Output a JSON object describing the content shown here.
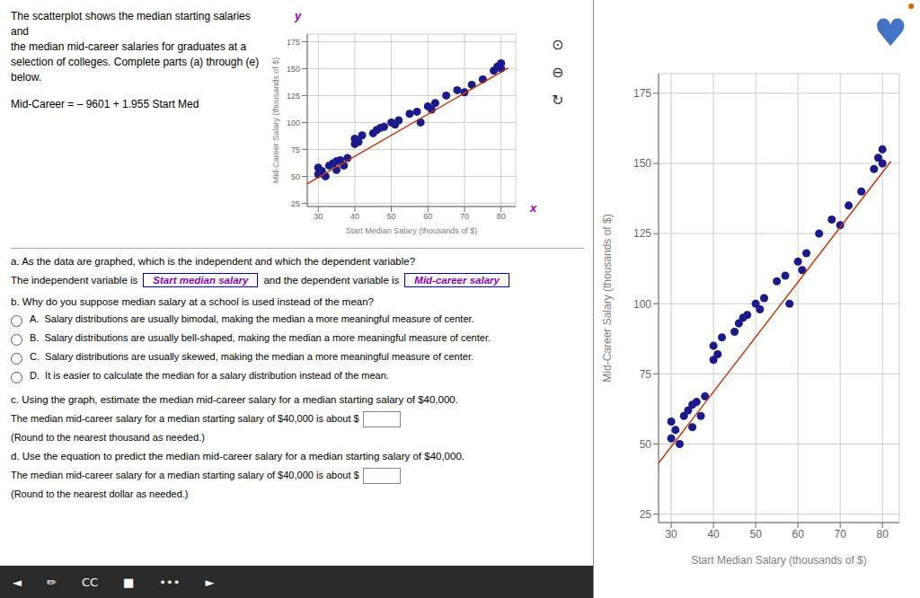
{
  "chart_data": [
    {
      "type": "scatter",
      "title": "The scatterplot shows the median starting salaries and\nthe median mid-career salaries for graduates at a\nselection of colleges. Complete parts (a) through (e)\nbelow.",
      "xlabel": "Start Median Salary (thousands of $)",
      "ylabel": "Mid-Career Salary (thousands of $)",
      "xlim": [
        27,
        84
      ],
      "ylim": [
        22,
        182
      ],
      "xticks": [
        30,
        40,
        50,
        60,
        70,
        80
      ],
      "yticks": [
        25,
        50,
        75,
        100,
        125,
        150,
        175
      ],
      "grid": true,
      "series": [
        {
          "type": "scatter",
          "color": "#1a1a8c",
          "marker": "circle",
          "x": [
            30,
            30,
            31,
            32,
            33,
            34,
            35,
            35,
            36,
            37,
            38,
            40,
            40,
            41,
            42,
            45,
            46,
            47,
            48,
            50,
            51,
            52,
            55,
            57,
            58,
            60,
            61,
            62,
            65,
            68,
            70,
            72,
            75,
            78,
            79,
            80,
            80
          ],
          "values": [
            52,
            58,
            55,
            50,
            60,
            62,
            56,
            64,
            65,
            60,
            67,
            80,
            85,
            82,
            88,
            90,
            93,
            95,
            96,
            100,
            98,
            102,
            108,
            110,
            100,
            115,
            112,
            118,
            125,
            130,
            128,
            135,
            140,
            148,
            152,
            150,
            155
          ]
        },
        {
          "type": "line",
          "color": "#cc3300",
          "line_style": "solid",
          "x": [
            27,
            82
          ],
          "values": [
            43.184,
            150.709
          ]
        }
      ],
      "annotations": [
        "Mid-Career = – 9601 + 1.955 Start Med",
        "a. As the data are graphed, which is the independent and which the dependent variable?",
        "The independent variable is",
        "Start median salary",
        "and the dependent variable is",
        "Mid-career salary",
        "b. Why do you suppose median salary at a school is used instead of the mean?",
        "A.  Salary distributions are usually bimodal, making the median a more meaningful measure of center.",
        "B.  Salary distributions are usually bell-shaped, making the median a more meaningful measure of center.",
        "C.  Salary distributions are usually skewed, making the median a more meaningful measure of center.",
        "D.  It is easier to calculate the median for a salary distribution instead of the mean.",
        "c. Using the graph, estimate the median mid-career salary for a median starting salary of $40,000.",
        "The median mid-career salary for a median starting salary of $40,000 is about $",
        "(Round to the nearest thousand as needed.)",
        "d. Use the equation to predict the median mid-career salary for a median starting salary of $40,000.",
        "The median mid-career salary for a median starting salary of $40,000 is about $",
        "(Round to the nearest dollar as needed.)",
        "y",
        "x",
        "⊙",
        "⊖",
        "↻",
        "◄",
        "✏",
        "CC",
        "■",
        "•••",
        "►"
      ]
    },
    {
      "type": "scatter",
      "xlabel": "Start Median Salary (thousands of $)",
      "ylabel": "Mid-Career Salary (thousands of $)",
      "xlim": [
        27,
        84
      ],
      "ylim": [
        22,
        182
      ],
      "xticks": [
        30,
        40,
        50,
        60,
        70,
        80
      ],
      "yticks": [
        25,
        50,
        75,
        100,
        125,
        150,
        175
      ],
      "grid": true,
      "series": [
        {
          "type": "scatter",
          "color": "#1a1a8c",
          "marker": "circle",
          "x": [
            30,
            30,
            31,
            32,
            33,
            34,
            35,
            35,
            36,
            37,
            38,
            40,
            40,
            41,
            42,
            45,
            46,
            47,
            48,
            50,
            51,
            52,
            55,
            57,
            58,
            60,
            61,
            62,
            65,
            68,
            70,
            72,
            75,
            78,
            79,
            80,
            80
          ],
          "values": [
            52,
            58,
            55,
            50,
            60,
            62,
            56,
            64,
            65,
            60,
            67,
            80,
            85,
            82,
            88,
            90,
            93,
            95,
            96,
            100,
            98,
            102,
            108,
            110,
            100,
            115,
            112,
            118,
            125,
            130,
            128,
            135,
            140,
            148,
            152,
            150,
            155
          ]
        },
        {
          "type": "line",
          "color": "#cc3300",
          "line_style": "solid",
          "x": [
            27,
            82
          ],
          "values": [
            43.184,
            150.709
          ]
        }
      ],
      "annotations": [
        "♥",
        "●"
      ]
    }
  ]
}
